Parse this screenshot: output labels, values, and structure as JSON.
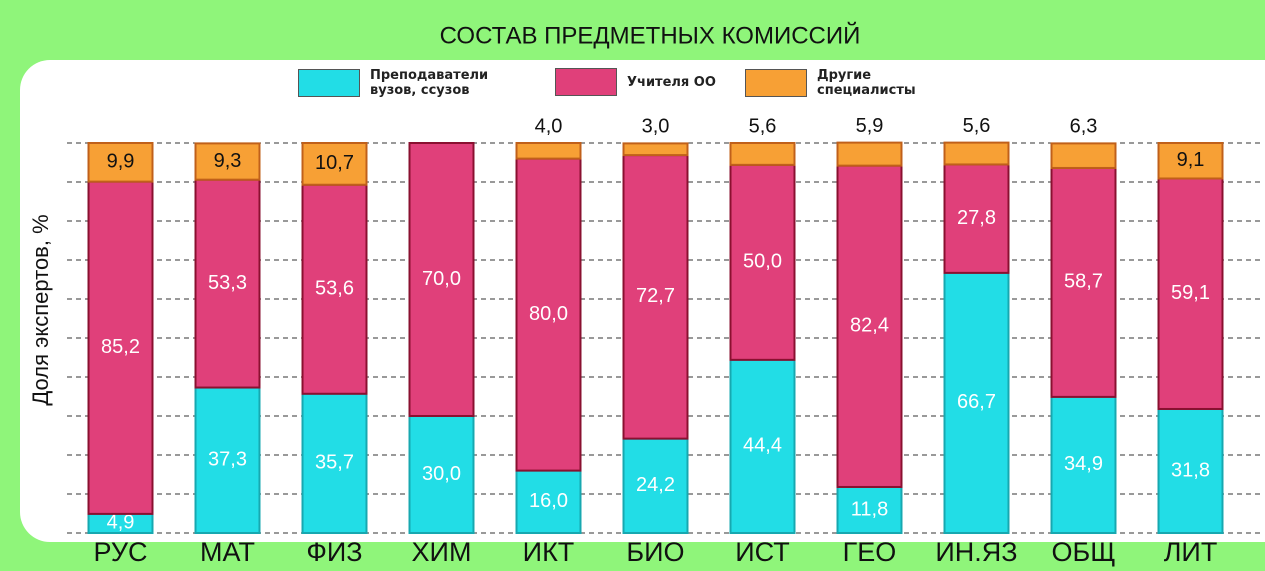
{
  "chart_data": {
    "type": "stacked_bar",
    "title": "СОСТАВ ПРЕДМЕТНЫХ КОМИССИЙ",
    "y_label": "Доля экспертов, %",
    "categories": [
      "РУС",
      "МАТ",
      "ФИЗ",
      "ХИМ",
      "ИКТ",
      "БИО",
      "ИСТ",
      "ГЕО",
      "ИН.ЯЗ",
      "ОБЩ",
      "ЛИТ"
    ],
    "series": [
      {
        "name": "Преподаватели вузов, ссузов",
        "color": "#22dde6",
        "values": [
          4.9,
          37.3,
          35.7,
          30.0,
          16.0,
          24.2,
          44.4,
          11.8,
          66.7,
          34.9,
          31.8
        ],
        "value_labels": [
          "4,9",
          "37,3",
          "35,7",
          "30,0",
          "16,0",
          "24,2",
          "44,4",
          "11,8",
          "66,7",
          "34,9",
          "31,8"
        ]
      },
      {
        "name": "Учителя ОО",
        "color": "#e0407a",
        "values": [
          85.2,
          53.3,
          53.6,
          70.0,
          80.0,
          72.7,
          50.0,
          82.4,
          27.8,
          58.7,
          59.1
        ],
        "value_labels": [
          "85,2",
          "53,3",
          "53,6",
          "70,0",
          "80,0",
          "72,7",
          "50,0",
          "82,4",
          "27,8",
          "58,7",
          "59,1"
        ]
      },
      {
        "name": "Другие специалисты",
        "color": "#f7a035",
        "values": [
          9.9,
          9.3,
          10.7,
          0,
          4.0,
          3.0,
          5.6,
          5.9,
          5.6,
          6.3,
          9.1
        ],
        "value_labels": [
          "9,9",
          "9,3",
          "10,7",
          null,
          "4,0",
          "3,0",
          "5,6",
          "5,9",
          "5,6",
          "6,3",
          "9,1"
        ]
      }
    ],
    "ylim": [
      0,
      100
    ],
    "yticks": [
      0,
      10,
      20,
      30,
      40,
      50,
      60,
      70,
      80,
      90,
      100
    ],
    "grid": true
  }
}
